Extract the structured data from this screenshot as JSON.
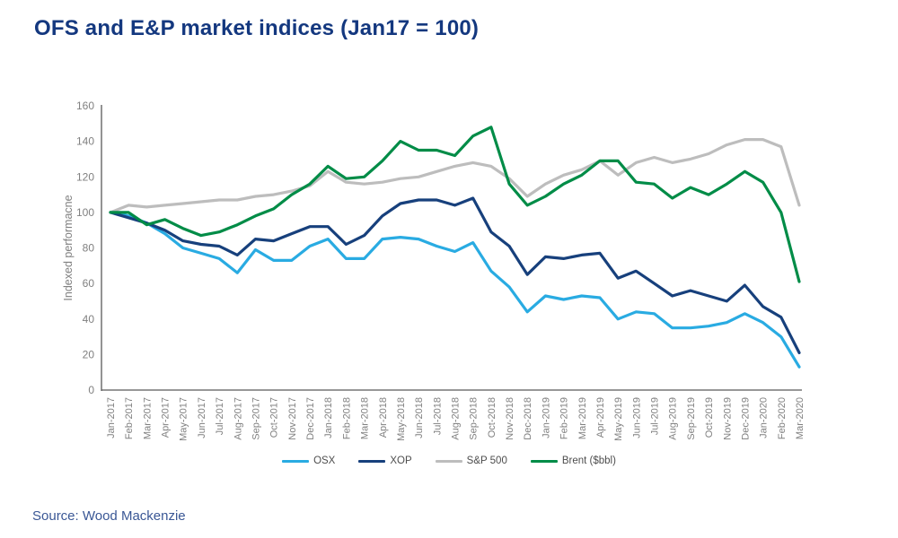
{
  "header": {
    "title": "OFS and E&P market indices (Jan17 = 100)"
  },
  "source": {
    "text": "Source: Wood Mackenzie"
  },
  "colors": {
    "title_text": "#14387F",
    "source_text": "#3A5795",
    "axis_line": "#595959",
    "tick_text": "#808080",
    "legend_text": "#4d4d4d",
    "osx": "#29ABE2",
    "xop": "#17407C",
    "sp500": "#BDBDBD",
    "brent": "#008C47"
  },
  "chart_data": {
    "type": "line",
    "title": "OFS and E&P market indices (Jan17 = 100)",
    "xlabel": "",
    "ylabel": "Indexed performacne",
    "ylim": [
      0,
      160
    ],
    "ytick_step": 20,
    "grid": false,
    "legend_position": "bottom",
    "categories": [
      "Jan-2017",
      "Feb-2017",
      "Mar-2017",
      "Apr-2017",
      "May-2017",
      "Jun-2017",
      "Jul-2017",
      "Aug-2017",
      "Sep-2017",
      "Oct-2017",
      "Nov-2017",
      "Dec-2017",
      "Jan-2018",
      "Feb-2018",
      "Mar-2018",
      "Apr-2018",
      "May-2018",
      "Jun-2018",
      "Jul-2018",
      "Aug-2018",
      "Sep-2018",
      "Oct-2018",
      "Nov-2018",
      "Dec-2018",
      "Jan-2019",
      "Feb-2019",
      "Mar-2019",
      "Apr-2019",
      "May-2019",
      "Jun-2019",
      "Jul-2019",
      "Aug-2019",
      "Sep-2019",
      "Oct-2019",
      "Nov-2019",
      "Dec-2019",
      "Jan-2020",
      "Feb-2020",
      "Mar-2020"
    ],
    "series": [
      {
        "name": "OSX",
        "color": "#29ABE2",
        "values": [
          100,
          98,
          94,
          88,
          80,
          77,
          74,
          66,
          79,
          73,
          73,
          81,
          85,
          74,
          74,
          85,
          86,
          85,
          81,
          78,
          83,
          67,
          58,
          44,
          53,
          51,
          53,
          52,
          40,
          44,
          43,
          35,
          35,
          36,
          38,
          43,
          38,
          30,
          13
        ]
      },
      {
        "name": "XOP",
        "color": "#17407C",
        "values": [
          100,
          97,
          94,
          90,
          84,
          82,
          81,
          76,
          85,
          84,
          88,
          92,
          92,
          82,
          87,
          98,
          105,
          107,
          107,
          104,
          108,
          89,
          81,
          65,
          75,
          74,
          76,
          77,
          63,
          67,
          60,
          53,
          56,
          53,
          50,
          59,
          47,
          41,
          21
        ]
      },
      {
        "name": "S&P 500",
        "color": "#BDBDBD",
        "values": [
          100,
          104,
          103,
          104,
          105,
          106,
          107,
          107,
          109,
          110,
          112,
          115,
          123,
          117,
          116,
          117,
          119,
          120,
          123,
          126,
          128,
          126,
          119,
          109,
          116,
          121,
          124,
          129,
          121,
          128,
          131,
          128,
          130,
          133,
          138,
          141,
          141,
          137,
          104
        ]
      },
      {
        "name": "Brent ($bbl)",
        "color": "#008C47",
        "values": [
          100,
          100,
          93,
          96,
          91,
          87,
          89,
          93,
          98,
          102,
          110,
          116,
          126,
          119,
          120,
          129,
          140,
          135,
          135,
          132,
          143,
          148,
          116,
          104,
          109,
          116,
          121,
          129,
          129,
          117,
          116,
          108,
          114,
          110,
          116,
          123,
          117,
          100,
          61
        ]
      }
    ]
  }
}
